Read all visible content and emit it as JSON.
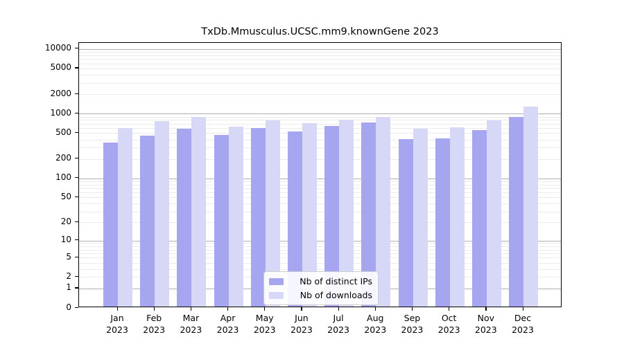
{
  "chart_data": {
    "type": "bar",
    "title": "TxDb.Mmusculus.UCSC.mm9.knownGene 2023",
    "scale": "log1p",
    "grid": true,
    "legend_position": "bottom-center",
    "months": [
      "Jan",
      "Feb",
      "Mar",
      "Apr",
      "May",
      "Jun",
      "Jul",
      "Aug",
      "Sep",
      "Oct",
      "Nov",
      "Dec"
    ],
    "year_label": "2023",
    "series": [
      {
        "name": "Nb of distinct IPs",
        "color": "#a5a5f0",
        "values": [
          342,
          440,
          560,
          449,
          570,
          512,
          615,
          690,
          382,
          398,
          528,
          850
        ]
      },
      {
        "name": "Nb of downloads",
        "color": "#d7d7f8",
        "values": [
          575,
          725,
          840,
          594,
          750,
          680,
          770,
          858,
          565,
          590,
          755,
          1230
        ]
      }
    ],
    "y_tick_values": [
      10000,
      5000,
      2000,
      1000,
      500,
      200,
      100,
      50,
      20,
      10,
      5,
      2,
      1,
      0
    ],
    "y_major_gridlines": [
      1,
      10,
      100,
      1000,
      10000
    ],
    "ylim": [
      0,
      12400
    ],
    "axis_color": "#000000",
    "major_grid_color": "#b0b0b0",
    "minor_grid_color": "#ebebeb"
  }
}
